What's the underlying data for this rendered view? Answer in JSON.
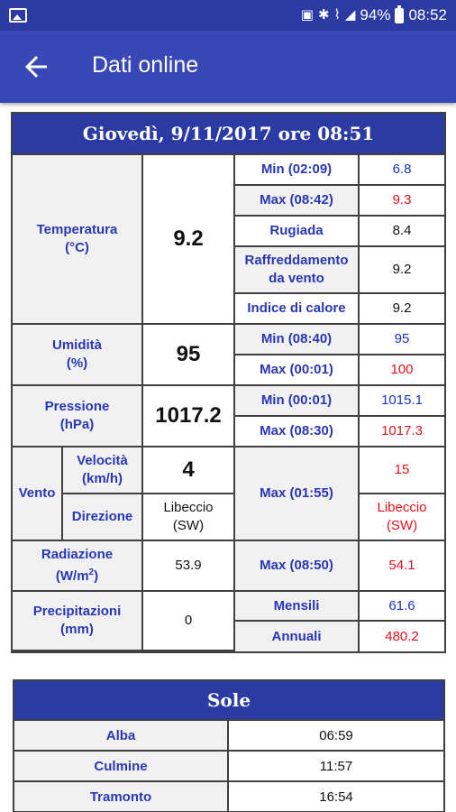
{
  "status_bar": {
    "battery": "94%",
    "time": "08:52",
    "icons": [
      "image-icon",
      "vibrate-icon",
      "bluetooth-icon",
      "wifi-icon",
      "signal-icon",
      "battery-icon"
    ]
  },
  "app_bar": {
    "title": "Dati online",
    "back_icon": "arrow-back-icon"
  },
  "main": {
    "header": "Giovedì,  9/11/2017  ore 08:51",
    "temperatura": {
      "label": "Temperatura\n(°C)",
      "value": "9.2",
      "min_label": "Min (02:09)",
      "min_value": "6.8",
      "max_label": "Max (08:42)",
      "max_value": "9.3",
      "rugiada_label": "Rugiada",
      "rugiada_value": "8.4",
      "raffreddamento_label": "Raffreddamento da vento",
      "raffreddamento_value": "9.2",
      "indice_label": "Indice di calore",
      "indice_value": "9.2"
    },
    "umidita": {
      "label": "Umidità\n(%)",
      "value": "95",
      "min_label": "Min (08:40)",
      "min_value": "95",
      "max_label": "Max (00:01)",
      "max_value": "100"
    },
    "pressione": {
      "label": "Pressione\n(hPa)",
      "value": "1017.2",
      "min_label": "Min (00:01)",
      "min_value": "1015.1",
      "max_label": "Max (08:30)",
      "max_value": "1017.3"
    },
    "vento": {
      "label": "Vento",
      "velocita_label": "Velocità\n(km/h)",
      "velocita_value": "4",
      "direzione_label": "Direzione",
      "direzione_value": "Libeccio\n(SW)",
      "max_label": "Max (01:55)",
      "max_speed": "15",
      "max_dir": "Libeccio\n(SW)"
    },
    "radiazione": {
      "label": "Radiazione",
      "unit": "(W/m",
      "unit_sup": "2",
      "unit_end": ")",
      "value": "53.9",
      "max_label": "Max (08:50)",
      "max_value": "54.1"
    },
    "precipitazioni": {
      "label": "Precipitazioni\n(mm)",
      "value": "0",
      "mensili_label": "Mensili",
      "mensili_value": "61.6",
      "annuali_label": "Annuali",
      "annuali_value": "480.2"
    }
  },
  "sole": {
    "header": "Sole",
    "rows": [
      {
        "label": "Alba",
        "value": "06:59"
      },
      {
        "label": "Culmine",
        "value": "11:57"
      },
      {
        "label": "Tramonto",
        "value": "16:54"
      }
    ]
  },
  "colors": {
    "appbar": "#3848b6",
    "statusbar": "#2c3aa3",
    "label_blue": "#2a37b5",
    "red": "#e4131b"
  }
}
